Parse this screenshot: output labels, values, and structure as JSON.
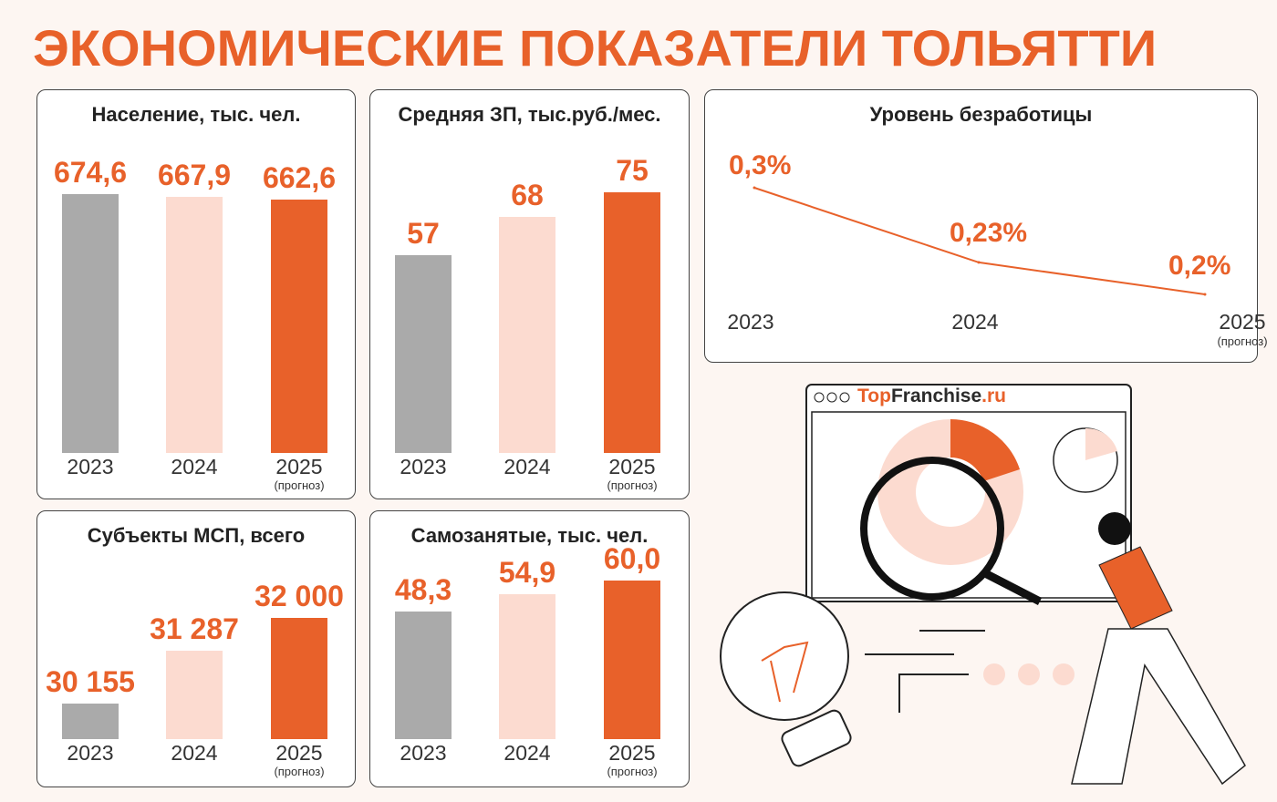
{
  "title": "ЭКОНОМИЧЕСКИЕ ПОКАЗАТЕЛИ ТОЛЬЯТТИ",
  "brand": {
    "part1": "Top",
    "part2": "Franchise",
    "part3": ".ru"
  },
  "colors": {
    "accent": "#e8612a",
    "peach": "#fcdbd0",
    "gray": "#aaaaaa"
  },
  "chart_data": [
    {
      "type": "bar",
      "title": "Население, тыс. чел.",
      "categories": [
        "2023",
        "2024",
        "2025"
      ],
      "category_notes": [
        "",
        "",
        "(прогноз)"
      ],
      "values": [
        674.6,
        667.9,
        662.6
      ],
      "labels": [
        "674,6",
        "667,9",
        "662,6"
      ],
      "ylim": [
        0,
        690
      ]
    },
    {
      "type": "bar",
      "title": "Средняя ЗП, тыс.руб./мес.",
      "categories": [
        "2023",
        "2024",
        "2025"
      ],
      "category_notes": [
        "",
        "",
        "(прогноз)"
      ],
      "values": [
        57,
        68,
        75
      ],
      "labels": [
        "57",
        "68",
        "75"
      ],
      "ylim": [
        0,
        75
      ]
    },
    {
      "type": "line",
      "title": "Уровень безработицы",
      "categories": [
        "2023",
        "2024",
        "2025"
      ],
      "category_notes": [
        "",
        "",
        "(прогноз)"
      ],
      "values": [
        0.3,
        0.23,
        0.2
      ],
      "labels": [
        "0,3%",
        "0,23%",
        "0,2%"
      ],
      "ylim": [
        0.2,
        0.3
      ]
    },
    {
      "type": "bar",
      "title": "Субъекты МСП, всего",
      "categories": [
        "2023",
        "2024",
        "2025"
      ],
      "category_notes": [
        "",
        "",
        "(прогноз)"
      ],
      "values": [
        30155,
        31287,
        32000
      ],
      "labels": [
        "30 155",
        "31 287",
        "32 000"
      ],
      "ylim": [
        29400,
        32000
      ]
    },
    {
      "type": "bar",
      "title": "Самозанятые, тыс. чел.",
      "categories": [
        "2023",
        "2024",
        "2025"
      ],
      "category_notes": [
        "",
        "",
        "(прогноз)"
      ],
      "values": [
        48.3,
        54.9,
        60.0
      ],
      "labels": [
        "48,3",
        "54,9",
        "60,0"
      ],
      "ylim": [
        0,
        60
      ]
    }
  ]
}
